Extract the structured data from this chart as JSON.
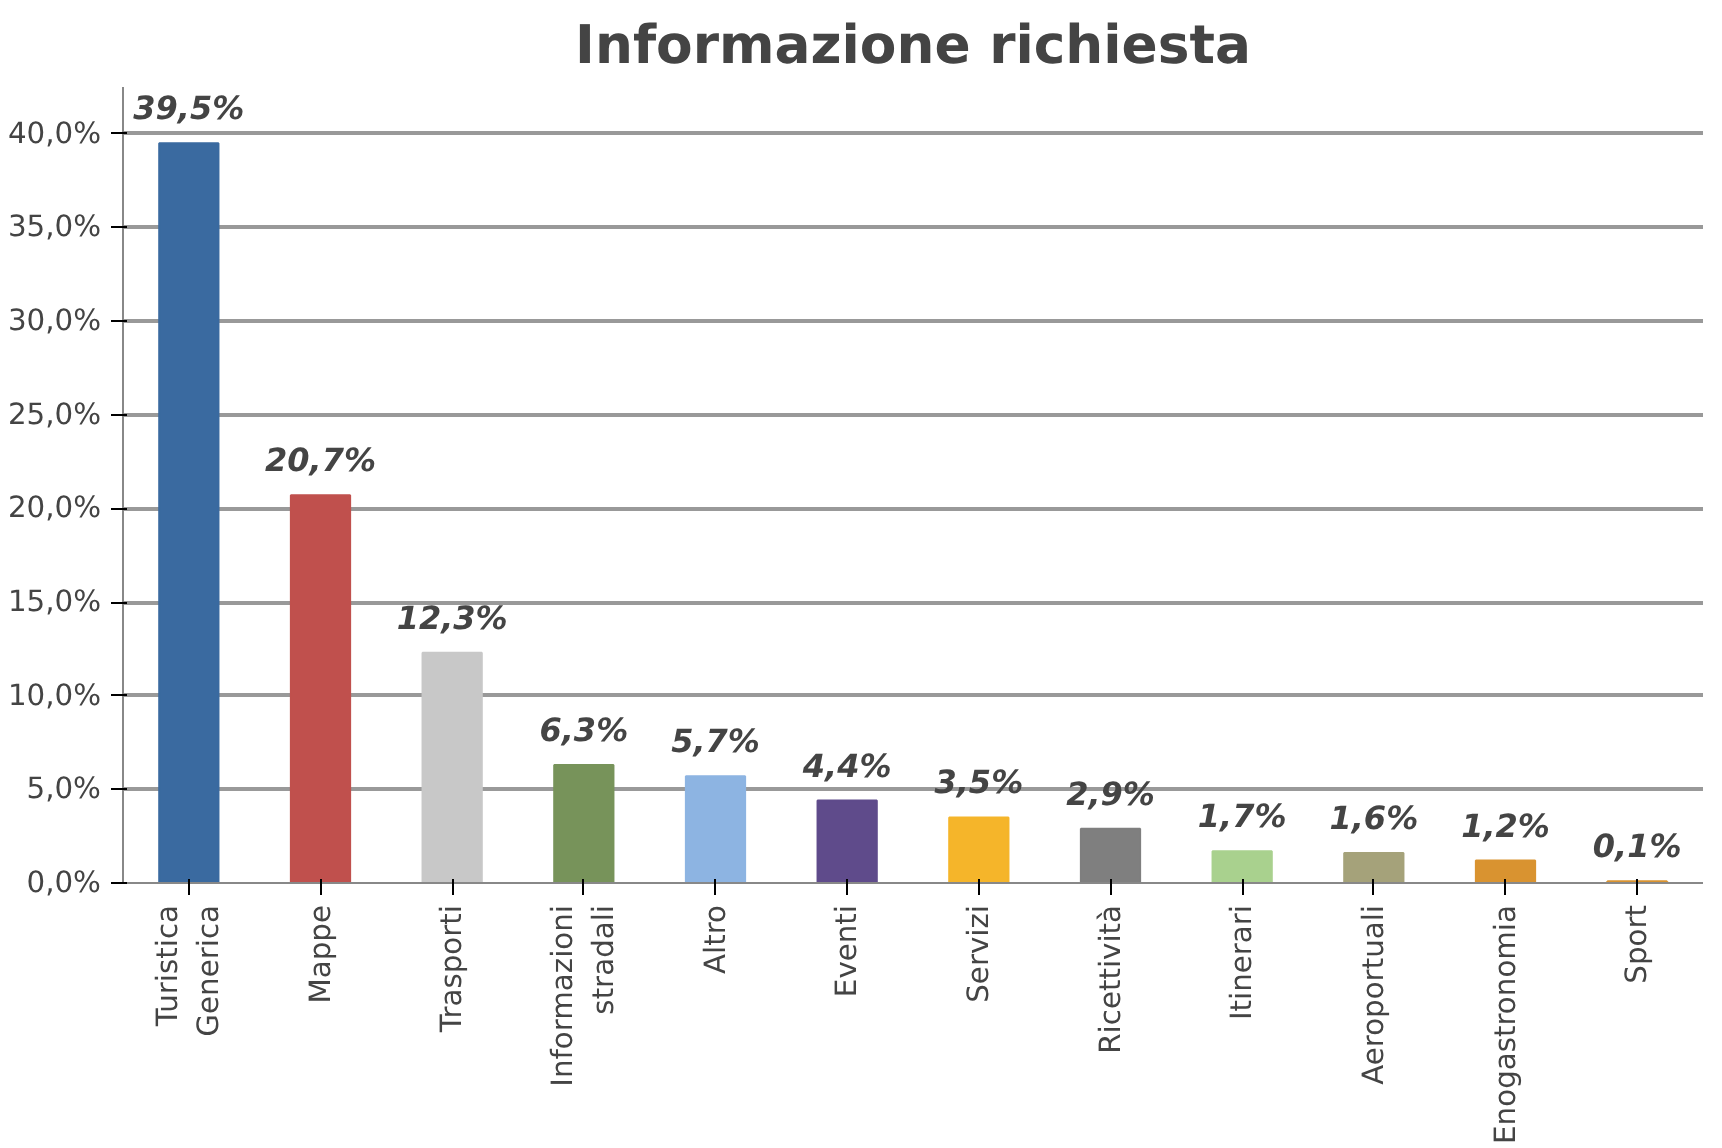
{
  "chart_data": {
    "type": "bar",
    "title": "Informazione richiesta",
    "categories": [
      "Turistica\nGenerica",
      "Mappe",
      "Trasporti",
      "Informazioni\nstradali",
      "Altro",
      "Eventi",
      "Servizi",
      "Ricettività",
      "Itinerari",
      "Aeroportuali",
      "Enogastronomia",
      "Sport"
    ],
    "values": [
      39.5,
      20.7,
      12.3,
      6.3,
      5.7,
      4.4,
      3.5,
      2.9,
      1.7,
      1.6,
      1.2,
      0.1
    ],
    "value_labels": [
      "39,5%",
      "20,7%",
      "12,3%",
      "6,3%",
      "5,7%",
      "4,4%",
      "3,5%",
      "2,9%",
      "1,7%",
      "1,6%",
      "1,2%",
      "0,1%"
    ],
    "colors": [
      "#3a6aa0",
      "#c0504d",
      "#c8c8c8",
      "#77935a",
      "#8db4e2",
      "#5f4b8b",
      "#f5b52a",
      "#7f7f7f",
      "#a9d18e",
      "#a5a27a",
      "#d99330",
      "#d99330"
    ],
    "ylim": [
      0,
      40
    ],
    "yticks": [
      {
        "value": 0,
        "label": "0,0%"
      },
      {
        "value": 5,
        "label": "5,0%"
      },
      {
        "value": 10,
        "label": "10,0%"
      },
      {
        "value": 15,
        "label": "15,0%"
      },
      {
        "value": 20,
        "label": "20,0%"
      },
      {
        "value": 25,
        "label": "25,0%"
      },
      {
        "value": 30,
        "label": "30,0%"
      },
      {
        "value": 35,
        "label": "35,0%"
      },
      {
        "value": 40,
        "label": "40,0%"
      }
    ],
    "grid": "y"
  }
}
